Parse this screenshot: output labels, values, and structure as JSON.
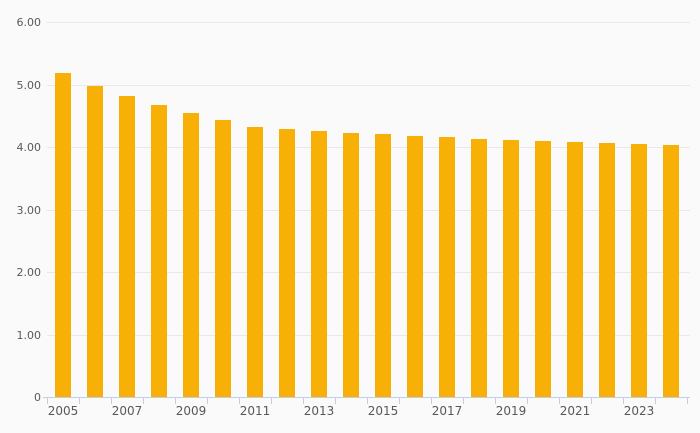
{
  "chart_data": {
    "type": "bar",
    "categories": [
      "2005",
      "2006",
      "2007",
      "2008",
      "2009",
      "2010",
      "2011",
      "2012",
      "2013",
      "2014",
      "2015",
      "2016",
      "2017",
      "2018",
      "2019",
      "2020",
      "2021",
      "2022",
      "2023",
      "2024"
    ],
    "values": [
      5.19,
      4.98,
      4.82,
      4.67,
      4.54,
      4.43,
      4.32,
      4.29,
      4.26,
      4.23,
      4.21,
      4.18,
      4.16,
      4.13,
      4.11,
      4.1,
      4.08,
      4.07,
      4.05,
      4.03
    ],
    "x_axis_visible_labels": [
      "2005",
      "2007",
      "2009",
      "2011",
      "2013",
      "2015",
      "2017",
      "2019",
      "2021",
      "2023"
    ],
    "y_tick_labels": [
      "6.00",
      "5.00",
      "4.00",
      "3.00",
      "2.00",
      "1.00",
      "0"
    ],
    "y_tick_values": [
      6,
      5,
      4,
      3,
      2,
      1,
      0
    ],
    "ylim": [
      0,
      6
    ],
    "grid": true,
    "legend": false,
    "colors": {
      "bar": "#F9B006",
      "background": "#FAFAFA",
      "gridline": "#E9E9E9",
      "axis_line": "#C4CDE6",
      "label_text": "#595959"
    }
  }
}
